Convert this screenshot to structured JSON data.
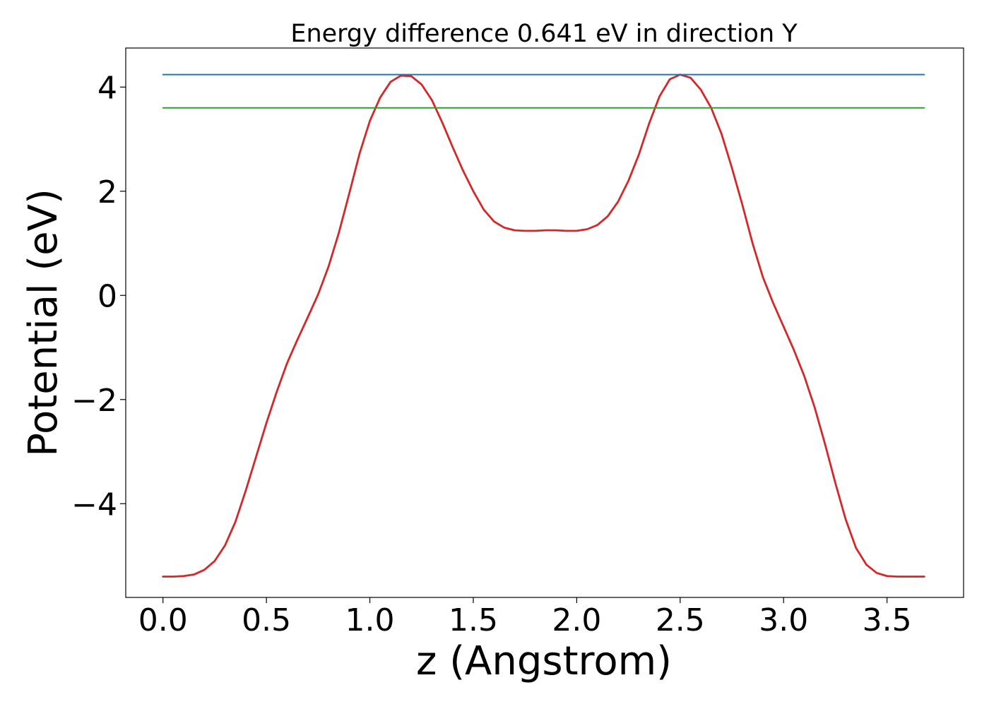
{
  "chart_data": {
    "type": "line",
    "title": "Energy difference 0.641 eV in direction Y",
    "xlabel": "z (Angstrom)",
    "ylabel": "Potential (eV)",
    "xlim": [
      -0.18,
      3.87
    ],
    "ylim": [
      -5.8,
      4.75
    ],
    "xticks": [
      0.0,
      0.5,
      1.0,
      1.5,
      2.0,
      2.5,
      3.0,
      3.5
    ],
    "xtick_labels": [
      "0.0",
      "0.5",
      "1.0",
      "1.5",
      "2.0",
      "2.5",
      "3.0",
      "3.5"
    ],
    "yticks": [
      -4,
      -2,
      0,
      2,
      4
    ],
    "ytick_labels": [
      "−4",
      "−2",
      "0",
      "2",
      "4"
    ],
    "grid": false,
    "legend": "none",
    "series": [
      {
        "color": "#d62728",
        "x": [
          0.0,
          0.05,
          0.1,
          0.15,
          0.2,
          0.25,
          0.3,
          0.35,
          0.4,
          0.45,
          0.5,
          0.55,
          0.6,
          0.65,
          0.7,
          0.75,
          0.8,
          0.85,
          0.9,
          0.95,
          1.0,
          1.05,
          1.1,
          1.15,
          1.2,
          1.25,
          1.3,
          1.35,
          1.4,
          1.45,
          1.5,
          1.55,
          1.6,
          1.65,
          1.7,
          1.75,
          1.8,
          1.85,
          1.9,
          1.95,
          2.0,
          2.05,
          2.1,
          2.15,
          2.2,
          2.25,
          2.3,
          2.35,
          2.4,
          2.45,
          2.5,
          2.55,
          2.6,
          2.65,
          2.7,
          2.75,
          2.8,
          2.85,
          2.9,
          2.95,
          3.0,
          3.05,
          3.1,
          3.15,
          3.2,
          3.25,
          3.3,
          3.35,
          3.4,
          3.45,
          3.5,
          3.55,
          3.6,
          3.65,
          3.68
        ],
        "values": [
          -5.4,
          -5.4,
          -5.39,
          -5.36,
          -5.27,
          -5.1,
          -4.8,
          -4.35,
          -3.75,
          -3.1,
          -2.45,
          -1.85,
          -1.3,
          -0.85,
          -0.42,
          0.02,
          0.55,
          1.2,
          1.95,
          2.72,
          3.35,
          3.8,
          4.1,
          4.22,
          4.21,
          4.05,
          3.75,
          3.32,
          2.85,
          2.4,
          2.0,
          1.65,
          1.42,
          1.3,
          1.25,
          1.24,
          1.24,
          1.25,
          1.25,
          1.24,
          1.24,
          1.27,
          1.35,
          1.52,
          1.8,
          2.2,
          2.7,
          3.3,
          3.82,
          4.15,
          4.24,
          4.18,
          3.95,
          3.6,
          3.1,
          2.45,
          1.75,
          1.0,
          0.35,
          -0.15,
          -0.6,
          -1.05,
          -1.55,
          -2.15,
          -2.85,
          -3.6,
          -4.3,
          -4.85,
          -5.17,
          -5.33,
          -5.39,
          -5.4,
          -5.4,
          -5.4,
          -5.4
        ]
      },
      {
        "color": "#1f77b4",
        "x": [
          0.0,
          3.68
        ],
        "values": [
          4.24,
          4.24
        ]
      },
      {
        "color": "#2ca02c",
        "x": [
          0.0,
          3.68
        ],
        "values": [
          3.6,
          3.6
        ]
      }
    ]
  }
}
